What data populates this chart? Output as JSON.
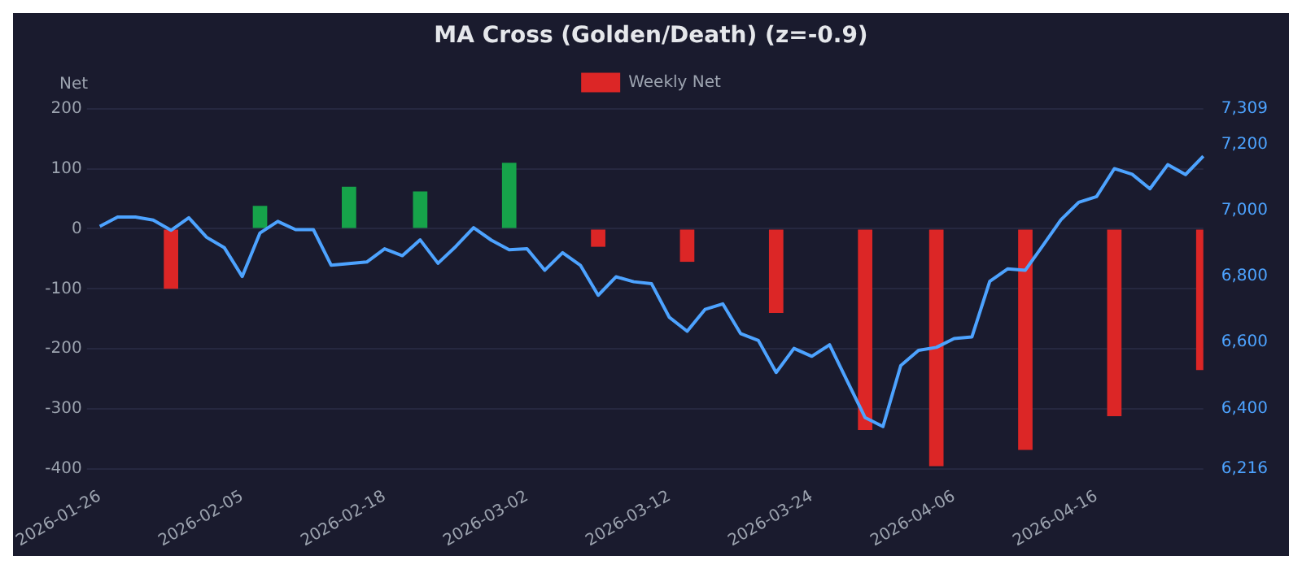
{
  "chart_data": {
    "type": "bar",
    "title": "MA Cross (Golden/Death) (z=-0.9)",
    "ylabel": "Net",
    "categories": [
      "2026-01-26",
      null,
      null,
      null,
      null,
      null,
      null,
      null,
      "2026-02-05",
      null,
      null,
      null,
      null,
      null,
      null,
      null,
      "2026-02-18",
      null,
      null,
      null,
      null,
      null,
      null,
      null,
      "2026-03-02",
      null,
      null,
      null,
      null,
      null,
      null,
      null,
      "2026-03-12",
      null,
      null,
      null,
      null,
      null,
      null,
      null,
      "2026-03-24",
      null,
      null,
      null,
      null,
      null,
      null,
      null,
      "2026-04-06",
      null,
      null,
      null,
      null,
      null,
      null,
      null,
      "2026-04-16",
      null,
      null,
      null,
      null,
      null,
      null
    ],
    "series": [
      {
        "name": "Weekly Net",
        "values": [
          null,
          null,
          null,
          null,
          -100,
          null,
          null,
          null,
          null,
          38,
          null,
          null,
          null,
          null,
          70,
          null,
          null,
          null,
          62,
          null,
          null,
          null,
          null,
          110,
          null,
          null,
          null,
          null,
          -30,
          null,
          null,
          null,
          null,
          -55,
          null,
          null,
          null,
          null,
          -140,
          null,
          null,
          null,
          null,
          -335,
          null,
          null,
          null,
          -395,
          null,
          null,
          null,
          null,
          -368,
          null,
          null,
          null,
          null,
          -312,
          null,
          null,
          null,
          null,
          -235
        ],
        "colors": [
          null,
          null,
          null,
          null,
          "#dc2626",
          null,
          null,
          null,
          null,
          "#16a34a",
          null,
          null,
          null,
          null,
          "#16a34a",
          null,
          null,
          null,
          "#16a34a",
          null,
          null,
          null,
          null,
          "#16a34a",
          null,
          null,
          null,
          null,
          "#dc2626",
          null,
          null,
          null,
          null,
          "#dc2626",
          null,
          null,
          null,
          null,
          "#dc2626",
          null,
          null,
          null,
          null,
          "#dc2626",
          null,
          null,
          null,
          "#dc2626",
          null,
          null,
          null,
          null,
          "#dc2626",
          null,
          null,
          null,
          null,
          "#dc2626",
          null,
          null,
          null,
          null,
          "#dc2626"
        ]
      },
      {
        "type": "line",
        "axis": "y2",
        "color": "#4da3ff",
        "values": [
          6952,
          6980,
          6980,
          6971,
          6940,
          6978,
          6919,
          6887,
          6800,
          6932,
          6967,
          6942,
          6942,
          6834,
          6839,
          6844,
          6884,
          6863,
          6911,
          6840,
          6891,
          6948,
          6910,
          6881,
          6884,
          6819,
          6872,
          6834,
          6743,
          6799,
          6784,
          6778,
          6676,
          6634,
          6700,
          6717,
          6627,
          6606,
          6509,
          6582,
          6558,
          6593,
          6482,
          6372,
          6345,
          6530,
          6576,
          6585,
          6612,
          6617,
          6785,
          6823,
          6819,
          6895,
          6972,
          7025,
          7042,
          7127,
          7110,
          7066,
          7139,
          7109,
          7165
        ]
      }
    ],
    "ylim": [
      -400,
      200
    ],
    "yticks": [
      -400,
      -300,
      -200,
      -100,
      0,
      100,
      200
    ],
    "y2lim": [
      6216,
      7309
    ],
    "y2ticks": [
      {
        "value": 6216,
        "label": "6,216"
      },
      {
        "value": 6400,
        "label": "6,400"
      },
      {
        "value": 6600,
        "label": "6,600"
      },
      {
        "value": 6800,
        "label": "6,800"
      },
      {
        "value": 7000,
        "label": "7,000"
      },
      {
        "value": 7200,
        "label": "7,200"
      },
      {
        "value": 7309,
        "label": "7,309"
      }
    ],
    "grid": "y",
    "legend": "top",
    "marker": "none"
  }
}
